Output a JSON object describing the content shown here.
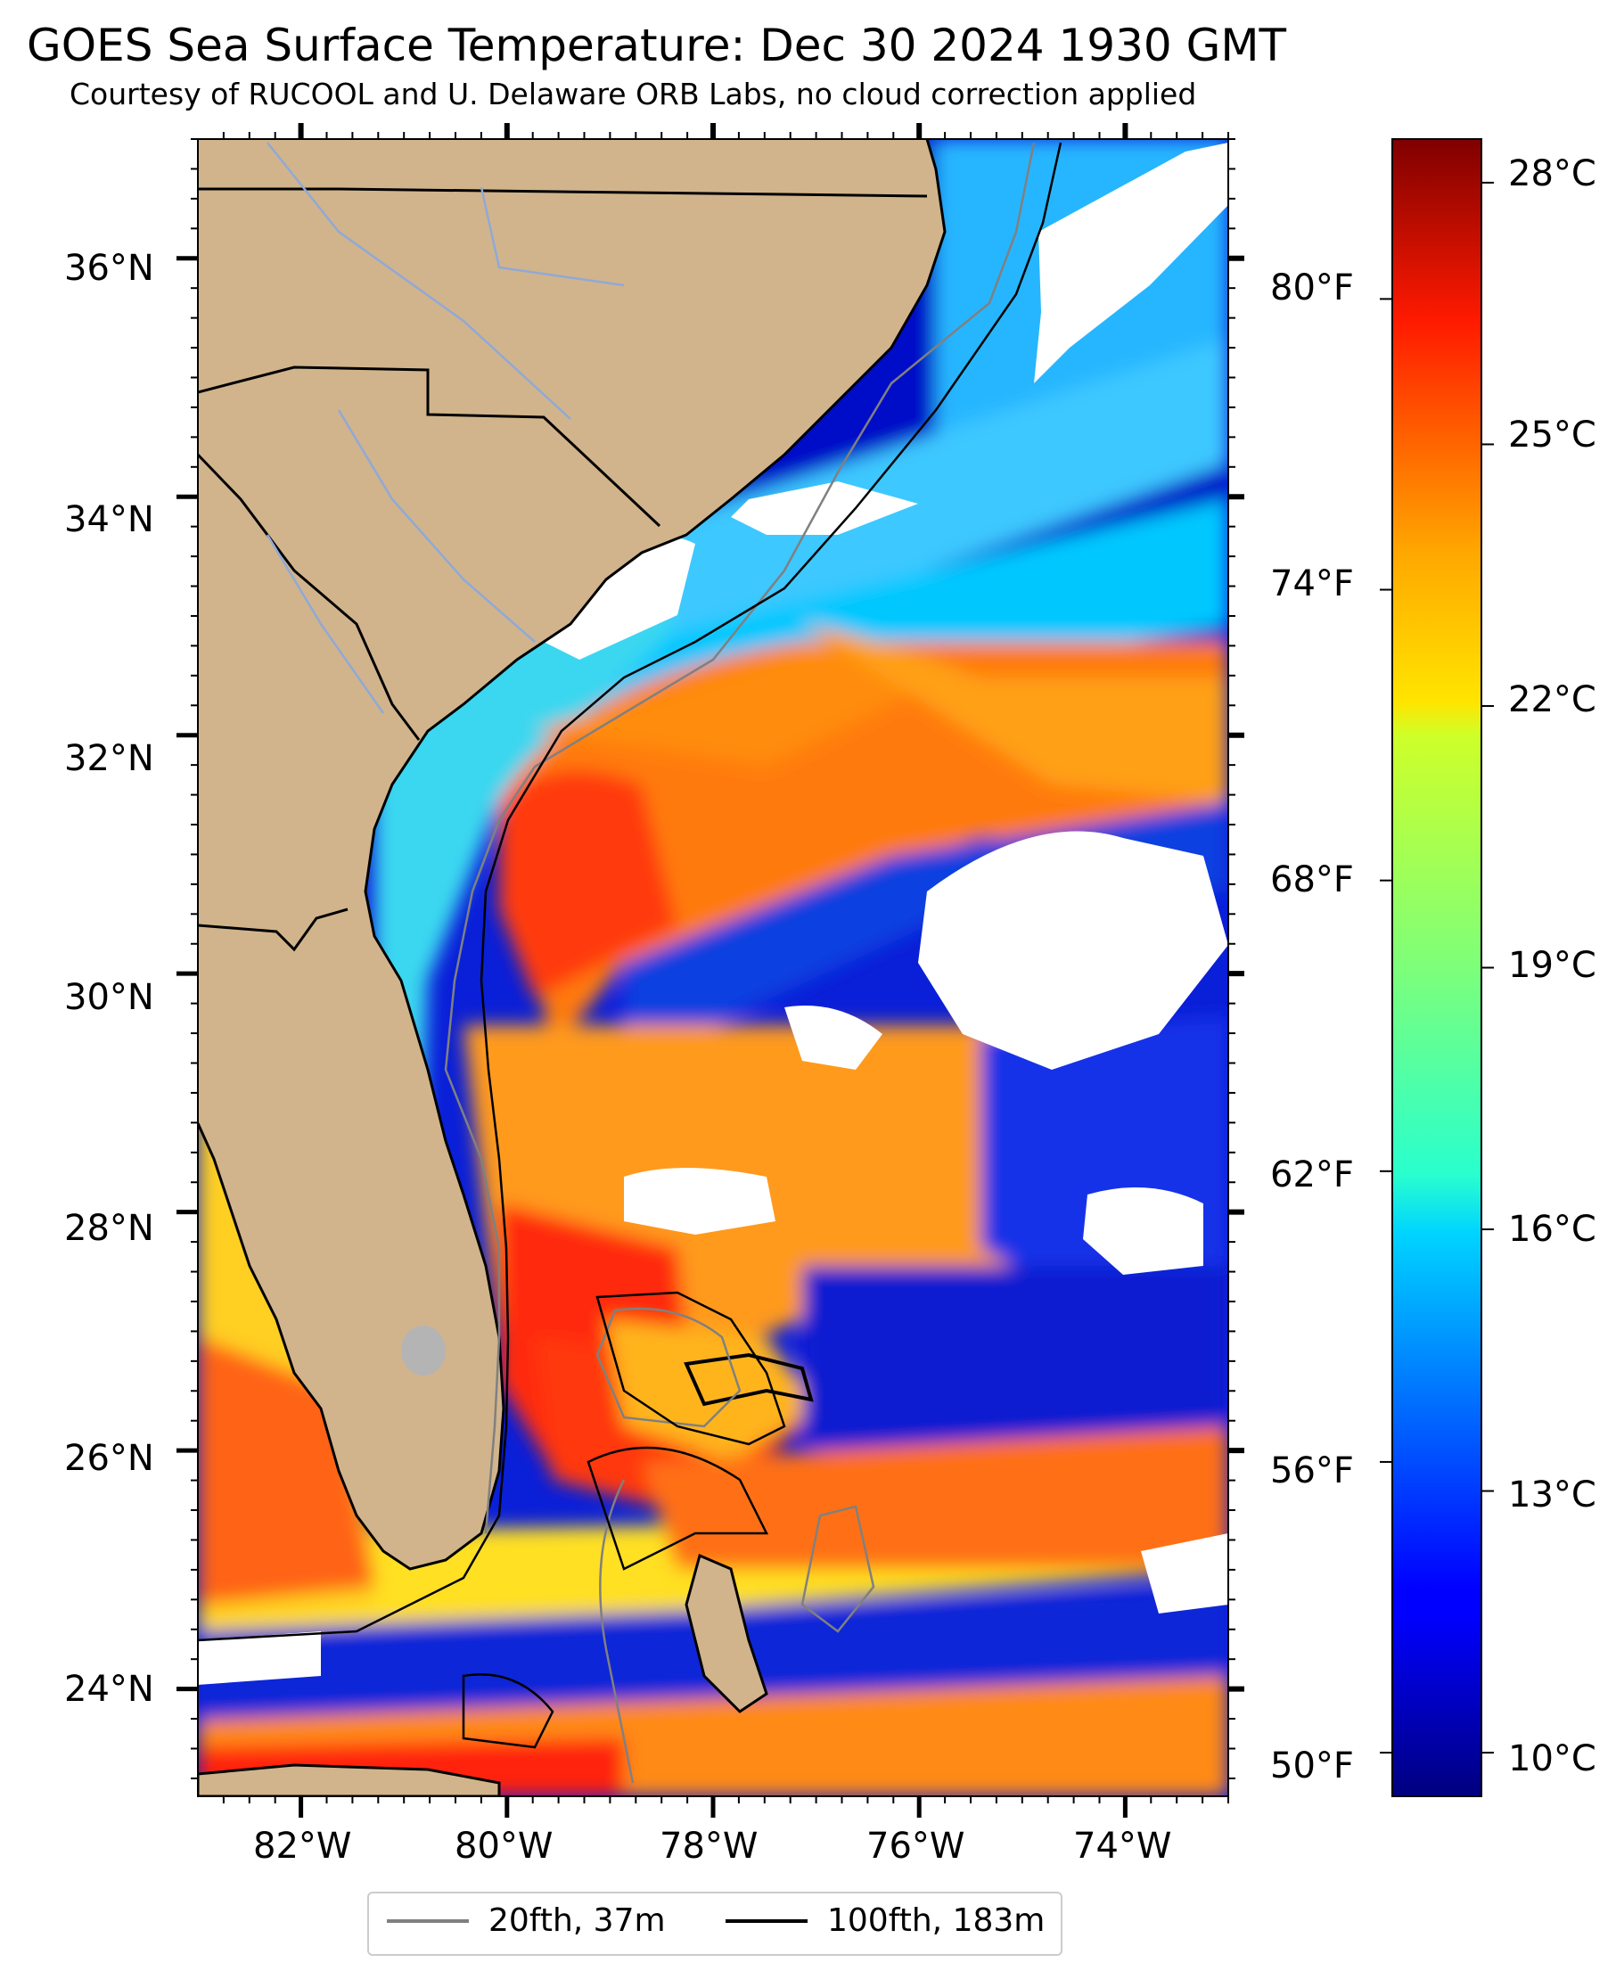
{
  "title": "GOES Sea Surface Temperature: Dec 30 2024 1930 GMT",
  "subtitle": "Courtesy of RUCOOL and U. Delaware ORB Labs, no cloud correction applied",
  "map": {
    "lat_range": [
      23.1,
      37.0
    ],
    "lon_range": [
      -83.0,
      -73.0
    ],
    "lat_ticks": [
      "24°N",
      "26°N",
      "28°N",
      "30°N",
      "32°N",
      "34°N",
      "36°N"
    ],
    "lon_ticks": [
      "82°W",
      "80°W",
      "78°W",
      "76°W",
      "74°W"
    ],
    "fahrenheit_ticks": [
      "80°F",
      "74°F",
      "68°F",
      "62°F",
      "56°F",
      "50°F"
    ],
    "land_color": "#d1b48c",
    "cloud_color": "#ffffff"
  },
  "colorbar": {
    "colormap": "jet",
    "range_c": [
      9.5,
      28.5
    ],
    "ticks": [
      "28°C",
      "25°C",
      "22°C",
      "19°C",
      "16°C",
      "13°C",
      "10°C"
    ]
  },
  "legend": {
    "items": [
      {
        "label": "20fth, 37m",
        "color": "#808080"
      },
      {
        "label": "100fth, 183m",
        "color": "#000000"
      }
    ]
  }
}
